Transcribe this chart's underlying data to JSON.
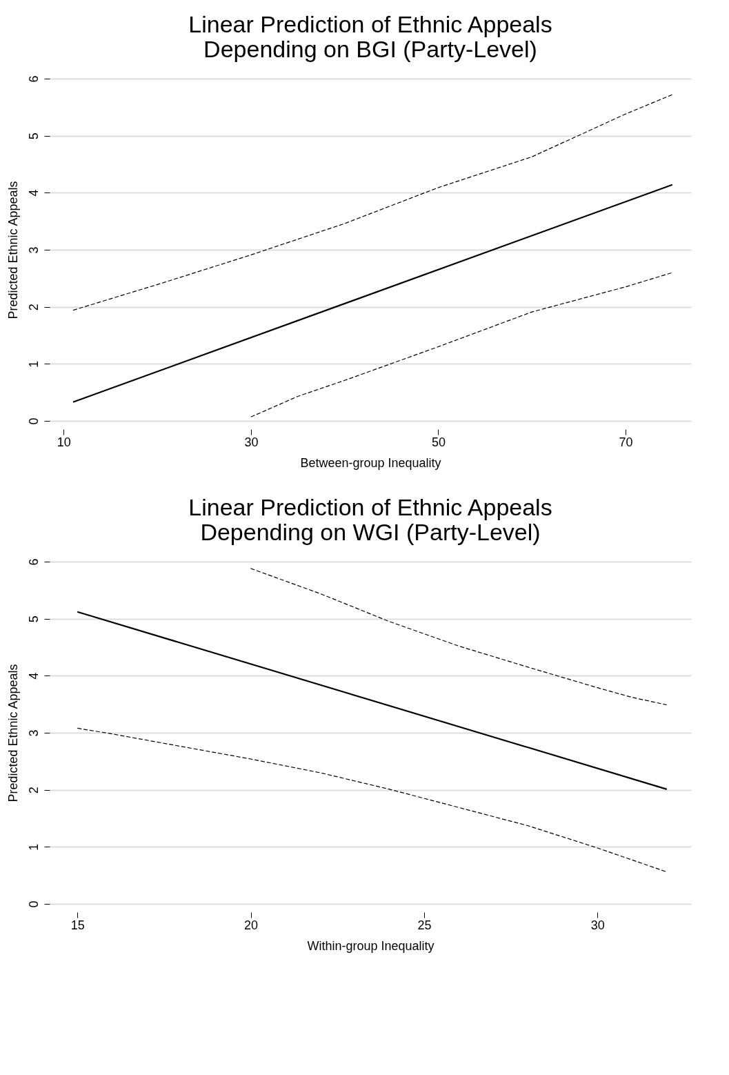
{
  "chart_data": [
    {
      "type": "line",
      "title": [
        "Linear Prediction of Ethnic Appeals",
        "Depending on BGI (Party-Level)"
      ],
      "xlabel": "Between-group Inequality",
      "ylabel": "Predicted Ethnic Appeals",
      "xlim": [
        8.5,
        77
      ],
      "xticks": [
        10,
        30,
        50,
        70
      ],
      "ylim": [
        0,
        6
      ],
      "yticks": [
        0,
        1,
        2,
        3,
        4,
        5,
        6
      ],
      "grid": "y",
      "series": [
        {
          "color": "#000000",
          "line_style": "solid",
          "x": [
            11,
            75
          ],
          "values": [
            0.33,
            4.14
          ]
        },
        {
          "color": "#000000",
          "line_style": "dashed",
          "x": [
            11,
            20,
            30,
            40,
            50,
            60,
            70,
            75
          ],
          "values": [
            1.94,
            2.39,
            2.91,
            3.46,
            4.09,
            4.63,
            5.38,
            5.72
          ]
        },
        {
          "color": "#000000",
          "line_style": "dashed",
          "x": [
            30,
            35,
            40,
            50,
            60,
            70,
            75
          ],
          "values": [
            0.07,
            0.43,
            0.71,
            1.3,
            1.91,
            2.35,
            2.6
          ]
        }
      ]
    },
    {
      "type": "line",
      "title": [
        "Linear Prediction of Ethnic Appeals",
        "Depending on WGI (Party-Level)"
      ],
      "xlabel": "Within-group Inequality",
      "ylabel": "Predicted Ethnic Appeals",
      "xlim": [
        14.2,
        32.7
      ],
      "xticks": [
        15,
        20,
        25,
        30
      ],
      "ylim": [
        0,
        6
      ],
      "yticks": [
        0,
        1,
        2,
        3,
        4,
        5,
        6
      ],
      "grid": "y",
      "series": [
        {
          "color": "#000000",
          "line_style": "solid",
          "x": [
            15,
            32
          ],
          "values": [
            5.12,
            2.01
          ]
        },
        {
          "color": "#000000",
          "line_style": "dashed",
          "x": [
            20,
            22,
            24,
            26,
            28,
            30,
            31,
            32
          ],
          "values": [
            5.88,
            5.44,
            4.95,
            4.52,
            4.15,
            3.79,
            3.62,
            3.49
          ]
        },
        {
          "color": "#000000",
          "line_style": "dashed",
          "x": [
            15,
            16,
            18,
            20,
            22,
            24,
            26,
            28,
            30,
            32
          ],
          "values": [
            3.08,
            2.98,
            2.76,
            2.54,
            2.3,
            2.01,
            1.69,
            1.37,
            0.98,
            0.56
          ]
        }
      ]
    }
  ]
}
